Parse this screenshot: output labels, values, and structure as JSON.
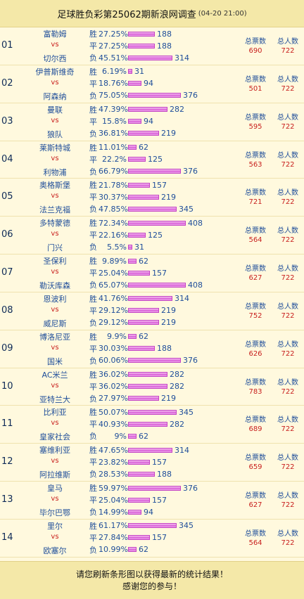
{
  "header": {
    "title": "足球胜负彩第25062期新浪网调查",
    "date": "(04-20 21:00)"
  },
  "labels": {
    "win": "胜",
    "draw": "平",
    "lose": "负",
    "vs": "vs",
    "total_votes": "总票数",
    "total_people": "总人数"
  },
  "colors": {
    "background": "#FFF9DE",
    "header": "#F4E8A8",
    "bar": "#DA62D8",
    "accent_red": "#C8201E",
    "team_blue": "#1F4E9A"
  },
  "matches": [
    {
      "no": "01",
      "home": "富勒姆",
      "away": "切尔西",
      "win_pct": "27.25%",
      "win": 188,
      "draw_pct": "27.25%",
      "draw": 188,
      "lose_pct": "45.51%",
      "lose": 314,
      "votes": "690",
      "people": "722"
    },
    {
      "no": "02",
      "home": "伊普斯维奇",
      "away": "阿森纳",
      "win_pct": "6.19%",
      "win": 31,
      "draw_pct": "18.76%",
      "draw": 94,
      "lose_pct": "75.05%",
      "lose": 376,
      "votes": "501",
      "people": "722"
    },
    {
      "no": "03",
      "home": "曼联",
      "away": "狼队",
      "win_pct": "47.39%",
      "win": 282,
      "draw_pct": "15.8%",
      "draw": 94,
      "lose_pct": "36.81%",
      "lose": 219,
      "votes": "595",
      "people": "722"
    },
    {
      "no": "04",
      "home": "莱斯特城",
      "away": "利物浦",
      "win_pct": "11.01%",
      "win": 62,
      "draw_pct": "22.2%",
      "draw": 125,
      "lose_pct": "66.79%",
      "lose": 376,
      "votes": "563",
      "people": "722"
    },
    {
      "no": "05",
      "home": "奥格斯堡",
      "away": "法兰克福",
      "win_pct": "21.78%",
      "win": 157,
      "draw_pct": "30.37%",
      "draw": 219,
      "lose_pct": "47.85%",
      "lose": 345,
      "votes": "721",
      "people": "722"
    },
    {
      "no": "06",
      "home": "多特蒙德",
      "away": "门兴",
      "win_pct": "72.34%",
      "win": 408,
      "draw_pct": "22.16%",
      "draw": 125,
      "lose_pct": "5.5%",
      "lose": 31,
      "votes": "564",
      "people": "722"
    },
    {
      "no": "07",
      "home": "圣保利",
      "away": "勒沃库森",
      "win_pct": "9.89%",
      "win": 62,
      "draw_pct": "25.04%",
      "draw": 157,
      "lose_pct": "65.07%",
      "lose": 408,
      "votes": "627",
      "people": "722"
    },
    {
      "no": "08",
      "home": "恩波利",
      "away": "威尼斯",
      "win_pct": "41.76%",
      "win": 314,
      "draw_pct": "29.12%",
      "draw": 219,
      "lose_pct": "29.12%",
      "lose": 219,
      "votes": "752",
      "people": "722"
    },
    {
      "no": "09",
      "home": "博洛尼亚",
      "away": "国米",
      "win_pct": "9.9%",
      "win": 62,
      "draw_pct": "30.03%",
      "draw": 188,
      "lose_pct": "60.06%",
      "lose": 376,
      "votes": "626",
      "people": "722"
    },
    {
      "no": "10",
      "home": "AC米兰",
      "away": "亚特兰大",
      "win_pct": "36.02%",
      "win": 282,
      "draw_pct": "36.02%",
      "draw": 282,
      "lose_pct": "27.97%",
      "lose": 219,
      "votes": "783",
      "people": "722"
    },
    {
      "no": "11",
      "home": "比利亚",
      "away": "皇家社会",
      "win_pct": "50.07%",
      "win": 345,
      "draw_pct": "40.93%",
      "draw": 282,
      "lose_pct": "9%",
      "lose": 62,
      "votes": "689",
      "people": "722"
    },
    {
      "no": "12",
      "home": "塞维利亚",
      "away": "阿拉维斯",
      "win_pct": "47.65%",
      "win": 314,
      "draw_pct": "23.82%",
      "draw": 157,
      "lose_pct": "28.53%",
      "lose": 188,
      "votes": "659",
      "people": "722"
    },
    {
      "no": "13",
      "home": "皇马",
      "away": "毕尔巴鄂",
      "win_pct": "59.97%",
      "win": 376,
      "draw_pct": "25.04%",
      "draw": 157,
      "lose_pct": "14.99%",
      "lose": 94,
      "votes": "627",
      "people": "722"
    },
    {
      "no": "14",
      "home": "里尔",
      "away": "欧塞尔",
      "win_pct": "61.17%",
      "win": 345,
      "draw_pct": "27.84%",
      "draw": 157,
      "lose_pct": "10.99%",
      "lose": 62,
      "votes": "564",
      "people": "722"
    }
  ],
  "footer": {
    "line1": "请您刷新条形图以获得最新的统计结果！",
    "line2": "感谢您的参与！"
  }
}
